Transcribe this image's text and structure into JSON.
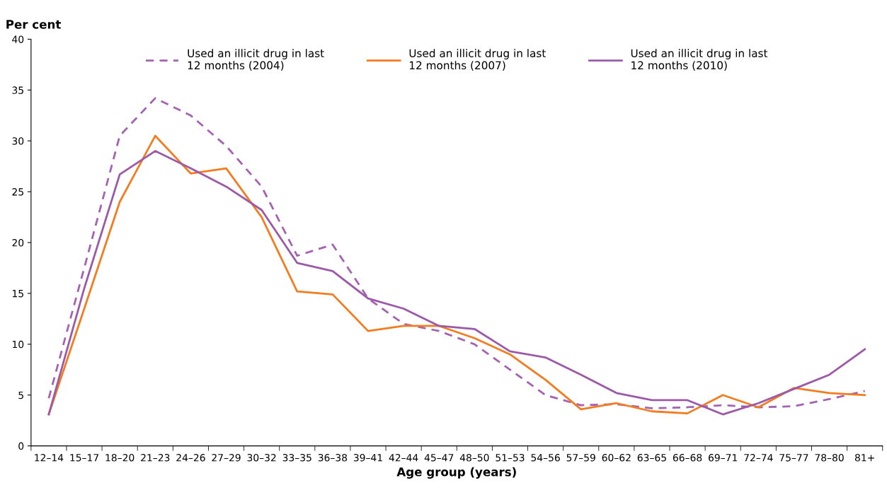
{
  "chart_data": {
    "type": "line",
    "xlabel": "Age group (years)",
    "ylabel": "Per cent",
    "categories": [
      "12–14",
      "15–17",
      "18–20",
      "21–23",
      "24–26",
      "27–29",
      "30–32",
      "33–35",
      "36–38",
      "39–41",
      "42–44",
      "45–47",
      "48–50",
      "51–53",
      "54–56",
      "57–59",
      "60–62",
      "63–65",
      "66–68",
      "69–71",
      "72–74",
      "75–77",
      "78–80",
      "81+"
    ],
    "series": [
      {
        "name": "Used an illicit drug in last\n12 months (2004)",
        "color": "#a562b3",
        "line_style": "dashed",
        "values": [
          4.7,
          17.5,
          30.5,
          34.2,
          32.5,
          29.5,
          25.5,
          18.7,
          19.8,
          14.5,
          12.0,
          11.3,
          10.0,
          7.5,
          5.0,
          4.0,
          4.1,
          3.7,
          3.8,
          4.0,
          3.8,
          3.9,
          4.6,
          5.4
        ]
      },
      {
        "name": "Used an illicit drug in last\n12 months (2007)",
        "color": "#f47c20",
        "line_style": "solid",
        "values": [
          3.1,
          13.5,
          24.0,
          30.5,
          26.8,
          27.3,
          22.5,
          15.2,
          14.9,
          11.3,
          11.8,
          11.8,
          10.6,
          9.0,
          6.5,
          3.6,
          4.2,
          3.4,
          3.2,
          5.0,
          3.8,
          5.7,
          5.2,
          5.0
        ]
      },
      {
        "name": "Used an illicit drug in last\n12 months (2010)",
        "color": "#9b59a8",
        "line_style": "solid",
        "values": [
          3.1,
          15.5,
          26.7,
          29.0,
          27.3,
          25.5,
          23.2,
          18.0,
          17.2,
          14.5,
          13.5,
          11.8,
          11.5,
          9.3,
          8.7,
          7.0,
          5.2,
          4.5,
          4.5,
          3.1,
          4.2,
          5.6,
          7.0,
          9.5
        ]
      }
    ],
    "ylim": [
      0,
      40
    ],
    "yticks": [
      0,
      5,
      10,
      15,
      20,
      25,
      30,
      35,
      40
    ],
    "grid": false,
    "legend": "top",
    "marker": "none"
  }
}
